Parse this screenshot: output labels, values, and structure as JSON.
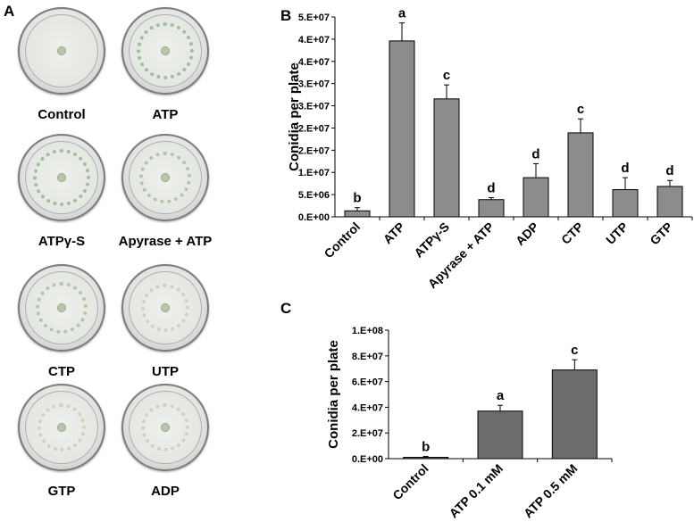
{
  "panel_a": {
    "letter": "A",
    "plates": [
      {
        "label": "Control",
        "ring": "none"
      },
      {
        "label": "ATP",
        "ring": "strong"
      },
      {
        "label": "ATPγ-S",
        "ring": "strong"
      },
      {
        "label": "Apyrase + ATP",
        "ring": "medium"
      },
      {
        "label": "CTP",
        "ring": "medium"
      },
      {
        "label": "UTP",
        "ring": "light"
      },
      {
        "label": "GTP",
        "ring": "light"
      },
      {
        "label": "ADP",
        "ring": "light"
      }
    ]
  },
  "chart_data": [
    {
      "panel": "B",
      "type": "bar",
      "title": "",
      "xlabel": "",
      "ylabel": "Conidia per plate",
      "ylim": [
        0,
        50000000
      ],
      "yticks": [
        "0.E+00",
        "5.E+06",
        "1.E+07",
        "2.E+07",
        "2.E+07",
        "3.E+07",
        "3.E+07",
        "4.E+07",
        "4.E+07",
        "5.E+07"
      ],
      "categories": [
        "Control",
        "ATP",
        "ATPγ-S",
        "Apyrase + ATP",
        "ADP",
        "CTP",
        "UTP",
        "GTP"
      ],
      "values": [
        1500000,
        44000000,
        29500000,
        4300000,
        9800000,
        21000000,
        6800000,
        7600000
      ],
      "errors": [
        800000,
        4500000,
        3500000,
        500000,
        3500000,
        3500000,
        3000000,
        1500000
      ],
      "letters": [
        "b",
        "a",
        "c",
        "d",
        "d",
        "c",
        "d",
        "d"
      ],
      "bar_color": "#8c8c8c",
      "grid": false
    },
    {
      "panel": "C",
      "type": "bar",
      "title": "",
      "xlabel": "",
      "ylabel": "Conidia per plate",
      "ylim": [
        0,
        100000000
      ],
      "yticks": [
        "0.E+00",
        "2.E+07",
        "4.E+07",
        "6.E+07",
        "8.E+07",
        "1.E+08"
      ],
      "categories": [
        "Control",
        "ATP 0.1 mM",
        "ATP 0.5 mM"
      ],
      "values": [
        1000000,
        37000000,
        69000000
      ],
      "errors": [
        700000,
        4500000,
        8000000
      ],
      "letters": [
        "b",
        "a",
        "c"
      ],
      "bar_color": "#6c6c6c",
      "grid": false
    }
  ],
  "colors": {
    "axis": "#000000",
    "plate_ring": "#a8bd98"
  }
}
